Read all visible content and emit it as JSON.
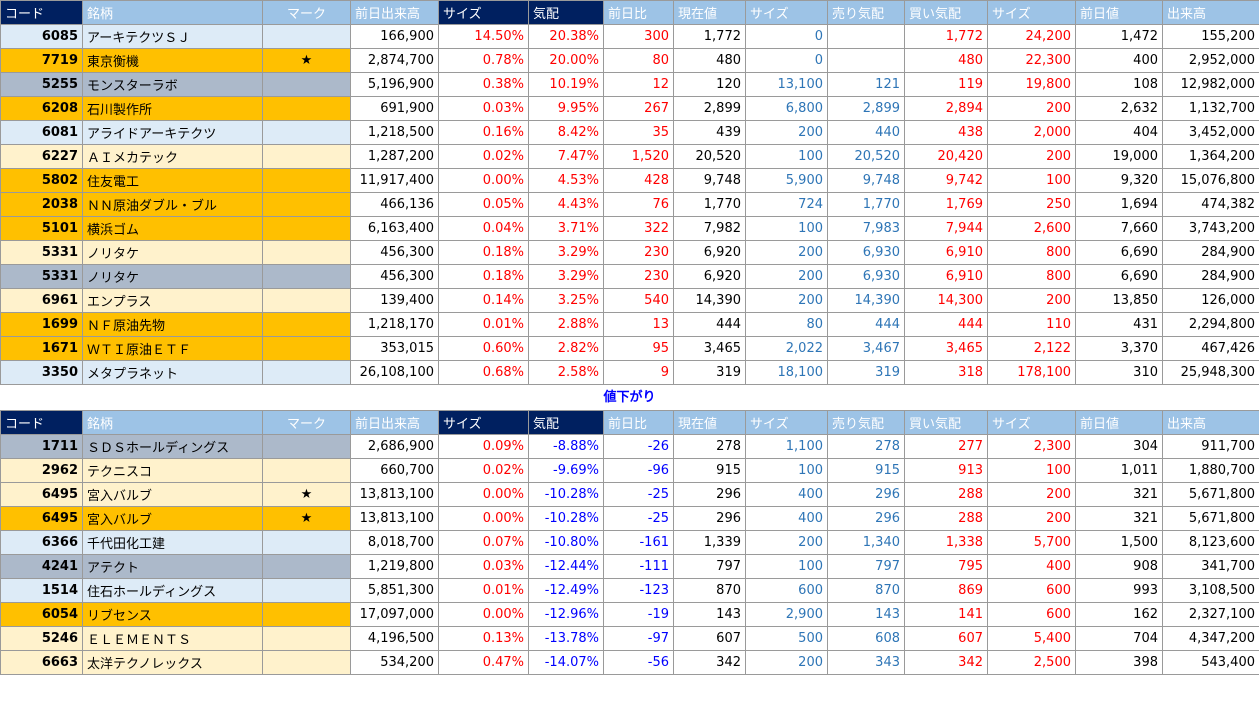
{
  "headers": [
    "コード",
    "銘柄",
    "マーク",
    "前日出来高",
    "サイズ",
    "気配",
    "前日比",
    "現在値",
    "サイズ",
    "売り気配",
    "買い気配",
    "サイズ",
    "前日値",
    "出来高"
  ],
  "separator": "値下がり",
  "up_rows": [
    {
      "bg": "lblue",
      "code": "6085",
      "name": "アーキテクツＳＪ",
      "mark": "",
      "prev_vol": "166,900",
      "size1": "14.50%",
      "kehai": "20.38%",
      "change": "300",
      "price": "1,772",
      "size2": "0",
      "ask": "",
      "bid": "1,772",
      "size3": "24,200",
      "prev_price": "1,472",
      "volume": "155,200"
    },
    {
      "bg": "orange",
      "code": "7719",
      "name": "東京衡機",
      "mark": "★",
      "prev_vol": "2,874,700",
      "size1": "0.78%",
      "kehai": "20.00%",
      "change": "80",
      "price": "480",
      "size2": "0",
      "ask": "",
      "bid": "480",
      "size3": "22,300",
      "prev_price": "400",
      "volume": "2,952,000"
    },
    {
      "bg": "gray",
      "code": "5255",
      "name": "モンスターラボ",
      "mark": "",
      "prev_vol": "5,196,900",
      "size1": "0.38%",
      "kehai": "10.19%",
      "change": "12",
      "price": "120",
      "size2": "13,100",
      "ask": "121",
      "bid": "119",
      "size3": "19,800",
      "prev_price": "108",
      "volume": "12,982,000"
    },
    {
      "bg": "orange",
      "code": "6208",
      "name": "石川製作所",
      "mark": "",
      "prev_vol": "691,900",
      "size1": "0.03%",
      "kehai": "9.95%",
      "change": "267",
      "price": "2,899",
      "size2": "6,800",
      "ask": "2,899",
      "bid": "2,894",
      "size3": "200",
      "prev_price": "2,632",
      "volume": "1,132,700"
    },
    {
      "bg": "lblue",
      "code": "6081",
      "name": "アライドアーキテクツ",
      "mark": "",
      "prev_vol": "1,218,500",
      "size1": "0.16%",
      "kehai": "8.42%",
      "change": "35",
      "price": "439",
      "size2": "200",
      "ask": "440",
      "bid": "438",
      "size3": "2,000",
      "prev_price": "404",
      "volume": "3,452,000"
    },
    {
      "bg": "cream",
      "code": "6227",
      "name": "ＡＩメカテック",
      "mark": "",
      "prev_vol": "1,287,200",
      "size1": "0.02%",
      "kehai": "7.47%",
      "change": "1,520",
      "price": "20,520",
      "size2": "100",
      "ask": "20,520",
      "bid": "20,420",
      "size3": "200",
      "prev_price": "19,000",
      "volume": "1,364,200"
    },
    {
      "bg": "orange",
      "code": "5802",
      "name": "住友電工",
      "mark": "",
      "prev_vol": "11,917,400",
      "size1": "0.00%",
      "kehai": "4.53%",
      "change": "428",
      "price": "9,748",
      "size2": "5,900",
      "ask": "9,748",
      "bid": "9,742",
      "size3": "100",
      "prev_price": "9,320",
      "volume": "15,076,800"
    },
    {
      "bg": "orange",
      "code": "2038",
      "name": "ＮＮ原油ダブル・ブル",
      "mark": "",
      "prev_vol": "466,136",
      "size1": "0.05%",
      "kehai": "4.43%",
      "change": "76",
      "price": "1,770",
      "size2": "724",
      "ask": "1,770",
      "bid": "1,769",
      "size3": "250",
      "prev_price": "1,694",
      "volume": "474,382"
    },
    {
      "bg": "orange",
      "code": "5101",
      "name": "横浜ゴム",
      "mark": "",
      "prev_vol": "6,163,400",
      "size1": "0.04%",
      "kehai": "3.71%",
      "change": "322",
      "price": "7,982",
      "size2": "100",
      "ask": "7,983",
      "bid": "7,944",
      "size3": "2,600",
      "prev_price": "7,660",
      "volume": "3,743,200"
    },
    {
      "bg": "cream",
      "code": "5331",
      "name": "ノリタケ",
      "mark": "",
      "prev_vol": "456,300",
      "size1": "0.18%",
      "kehai": "3.29%",
      "change": "230",
      "price": "6,920",
      "size2": "200",
      "ask": "6,930",
      "bid": "6,910",
      "size3": "800",
      "prev_price": "6,690",
      "volume": "284,900"
    },
    {
      "bg": "gray",
      "code": "5331",
      "name": "ノリタケ",
      "mark": "",
      "prev_vol": "456,300",
      "size1": "0.18%",
      "kehai": "3.29%",
      "change": "230",
      "price": "6,920",
      "size2": "200",
      "ask": "6,930",
      "bid": "6,910",
      "size3": "800",
      "prev_price": "6,690",
      "volume": "284,900"
    },
    {
      "bg": "cream",
      "code": "6961",
      "name": "エンプラス",
      "mark": "",
      "prev_vol": "139,400",
      "size1": "0.14%",
      "kehai": "3.25%",
      "change": "540",
      "price": "14,390",
      "size2": "200",
      "ask": "14,390",
      "bid": "14,300",
      "size3": "200",
      "prev_price": "13,850",
      "volume": "126,000"
    },
    {
      "bg": "orange",
      "code": "1699",
      "name": "ＮＦ原油先物",
      "mark": "",
      "prev_vol": "1,218,170",
      "size1": "0.01%",
      "kehai": "2.88%",
      "change": "13",
      "price": "444",
      "size2": "80",
      "ask": "444",
      "bid": "444",
      "size3": "110",
      "prev_price": "431",
      "volume": "2,294,800"
    },
    {
      "bg": "orange",
      "code": "1671",
      "name": "ＷＴＩ原油ＥＴＦ",
      "mark": "",
      "prev_vol": "353,015",
      "size1": "0.60%",
      "kehai": "2.82%",
      "change": "95",
      "price": "3,465",
      "size2": "2,022",
      "ask": "3,467",
      "bid": "3,465",
      "size3": "2,122",
      "prev_price": "3,370",
      "volume": "467,426"
    },
    {
      "bg": "lblue",
      "code": "3350",
      "name": "メタプラネット",
      "mark": "",
      "prev_vol": "26,108,100",
      "size1": "0.68%",
      "kehai": "2.58%",
      "change": "9",
      "price": "319",
      "size2": "18,100",
      "ask": "319",
      "bid": "318",
      "size3": "178,100",
      "prev_price": "310",
      "volume": "25,948,300"
    }
  ],
  "down_rows": [
    {
      "bg": "gray",
      "code": "1711",
      "name": "ＳＤＳホールディングス",
      "mark": "",
      "prev_vol": "2,686,900",
      "size1": "0.09%",
      "kehai": "-8.88%",
      "change": "-26",
      "price": "278",
      "size2": "1,100",
      "ask": "278",
      "bid": "277",
      "size3": "2,300",
      "prev_price": "304",
      "volume": "911,700"
    },
    {
      "bg": "cream",
      "code": "2962",
      "name": "テクニスコ",
      "mark": "",
      "prev_vol": "660,700",
      "size1": "0.02%",
      "kehai": "-9.69%",
      "change": "-96",
      "price": "915",
      "size2": "100",
      "ask": "915",
      "bid": "913",
      "size3": "100",
      "prev_price": "1,011",
      "volume": "1,880,700"
    },
    {
      "bg": "cream",
      "code": "6495",
      "name": "宮入バルブ",
      "mark": "★",
      "prev_vol": "13,813,100",
      "size1": "0.00%",
      "kehai": "-10.28%",
      "change": "-25",
      "price": "296",
      "size2": "400",
      "ask": "296",
      "bid": "288",
      "size3": "200",
      "prev_price": "321",
      "volume": "5,671,800"
    },
    {
      "bg": "orange",
      "code": "6495",
      "name": "宮入バルブ",
      "mark": "★",
      "prev_vol": "13,813,100",
      "size1": "0.00%",
      "kehai": "-10.28%",
      "change": "-25",
      "price": "296",
      "size2": "400",
      "ask": "296",
      "bid": "288",
      "size3": "200",
      "prev_price": "321",
      "volume": "5,671,800"
    },
    {
      "bg": "lblue",
      "code": "6366",
      "name": "千代田化工建",
      "mark": "",
      "prev_vol": "8,018,700",
      "size1": "0.07%",
      "kehai": "-10.80%",
      "change": "-161",
      "price": "1,339",
      "size2": "200",
      "ask": "1,340",
      "bid": "1,338",
      "size3": "5,700",
      "prev_price": "1,500",
      "volume": "8,123,600"
    },
    {
      "bg": "gray",
      "code": "4241",
      "name": "アテクト",
      "mark": "",
      "prev_vol": "1,219,800",
      "size1": "0.03%",
      "kehai": "-12.44%",
      "change": "-111",
      "price": "797",
      "size2": "100",
      "ask": "797",
      "bid": "795",
      "size3": "400",
      "prev_price": "908",
      "volume": "341,700"
    },
    {
      "bg": "lblue",
      "code": "1514",
      "name": "住石ホールディングス",
      "mark": "",
      "prev_vol": "5,851,300",
      "size1": "0.01%",
      "kehai": "-12.49%",
      "change": "-123",
      "price": "870",
      "size2": "600",
      "ask": "870",
      "bid": "869",
      "size3": "600",
      "prev_price": "993",
      "volume": "3,108,500"
    },
    {
      "bg": "orange",
      "code": "6054",
      "name": "リブセンス",
      "mark": "",
      "prev_vol": "17,097,000",
      "size1": "0.00%",
      "kehai": "-12.96%",
      "change": "-19",
      "price": "143",
      "size2": "2,900",
      "ask": "143",
      "bid": "141",
      "size3": "600",
      "prev_price": "162",
      "volume": "2,327,100"
    },
    {
      "bg": "cream",
      "code": "5246",
      "name": "ＥＬＥＭＥＮＴＳ",
      "mark": "",
      "prev_vol": "4,196,500",
      "size1": "0.13%",
      "kehai": "-13.78%",
      "change": "-97",
      "price": "607",
      "size2": "500",
      "ask": "608",
      "bid": "607",
      "size3": "5,400",
      "prev_price": "704",
      "volume": "4,347,200"
    },
    {
      "bg": "cream",
      "code": "6663",
      "name": "太洋テクノレックス",
      "mark": "",
      "prev_vol": "534,200",
      "size1": "0.47%",
      "kehai": "-14.07%",
      "change": "-56",
      "price": "342",
      "size2": "200",
      "ask": "343",
      "bid": "342",
      "size3": "2,500",
      "prev_price": "398",
      "volume": "543,400"
    }
  ]
}
